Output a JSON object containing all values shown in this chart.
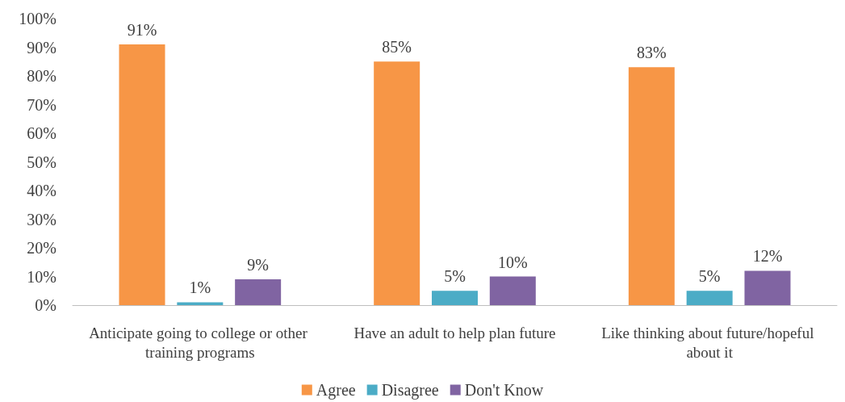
{
  "chart_data": {
    "type": "bar",
    "categories": [
      "Anticipate going to college or other training programs",
      "Have an adult to help plan future",
      "Like thinking about future/hopeful about it"
    ],
    "series": [
      {
        "name": "Agree",
        "color": "#f79646",
        "values": [
          91,
          85,
          83
        ],
        "value_labels": [
          "91%",
          "85%",
          "83%"
        ]
      },
      {
        "name": "Disagree",
        "color": "#4bacc6",
        "values": [
          1,
          5,
          5
        ],
        "value_labels": [
          "1%",
          "5%",
          "5%"
        ]
      },
      {
        "name": "Don't Know",
        "color": "#8064a2",
        "values": [
          9,
          10,
          12
        ],
        "value_labels": [
          "9%",
          "10%",
          "12%"
        ]
      }
    ],
    "ylim": [
      0,
      100
    ],
    "yticks": [
      {
        "value": 0,
        "label": "0%"
      },
      {
        "value": 10,
        "label": "10%"
      },
      {
        "value": 20,
        "label": "20%"
      },
      {
        "value": 30,
        "label": "30%"
      },
      {
        "value": 40,
        "label": "40%"
      },
      {
        "value": 50,
        "label": "50%"
      },
      {
        "value": 60,
        "label": "60%"
      },
      {
        "value": 70,
        "label": "70%"
      },
      {
        "value": 80,
        "label": "80%"
      },
      {
        "value": 90,
        "label": "90%"
      },
      {
        "value": 100,
        "label": "100%"
      }
    ],
    "grid": false,
    "legend": "bottom"
  }
}
